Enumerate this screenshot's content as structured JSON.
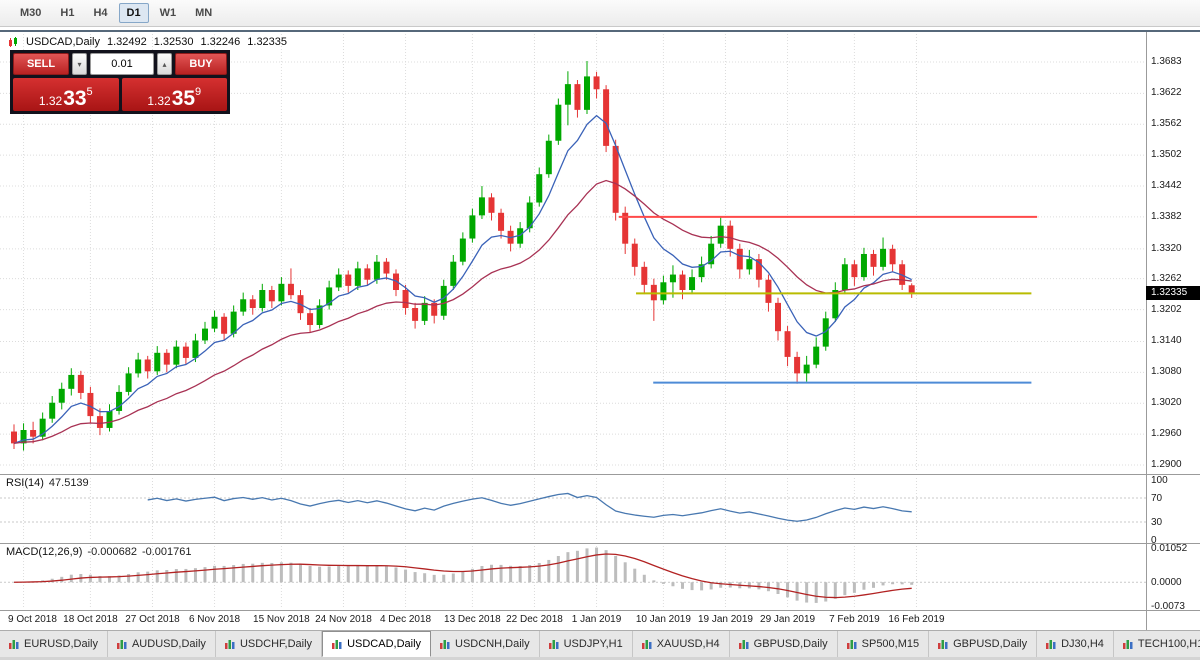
{
  "toolbar": {
    "timeframes": [
      "M30",
      "H1",
      "H4",
      "D1",
      "W1",
      "MN"
    ],
    "active": "D1"
  },
  "chart_header": {
    "title": "USDCAD,Daily",
    "open": "1.32492",
    "high": "1.32530",
    "low": "1.32246",
    "close": "1.32335"
  },
  "trade_widget": {
    "sell_label": "SELL",
    "buy_label": "BUY",
    "volume": "0.01",
    "sell_price_big": "1.32",
    "sell_price_pips": "33",
    "sell_price_pipette": "5",
    "buy_price_big": "1.32",
    "buy_price_pips": "35",
    "buy_price_pipette": "9"
  },
  "price_axis": {
    "current_price": "1.32335"
  },
  "rsi_panel": {
    "title": "RSI(14)",
    "value": "47.5139",
    "axis_labels": [
      "100",
      "70",
      "30",
      "0"
    ]
  },
  "macd_panel": {
    "title": "MACD(12,26,9)",
    "value_main": "-0.000682",
    "value_signal": "-0.001761",
    "axis_labels": [
      "0.01052",
      "0.0000",
      "-0.0073"
    ]
  },
  "tabs": {
    "items": [
      "EURUSD,Daily",
      "AUDUSD,Daily",
      "USDCHF,Daily",
      "USDCAD,Daily",
      "USDCNH,Daily",
      "USDJPY,H1",
      "XAUUSD,H4",
      "GBPUSD,Daily",
      "SP500,M15",
      "GBPUSD,Daily",
      "DJ30,H4",
      "TECH100,H1"
    ],
    "active": "USDCAD,Daily"
  },
  "chart_data": {
    "type": "candlestick",
    "title": "USDCAD,Daily",
    "symbol": "USDCAD",
    "timeframe": "Daily",
    "ohlc_current": [
      1.32492,
      1.3253,
      1.32246,
      1.32335
    ],
    "y_gridlines": [
      1.3683,
      1.3622,
      1.3562,
      1.3502,
      1.3442,
      1.3382,
      1.332,
      1.3262,
      1.3202,
      1.314,
      1.308,
      1.302,
      1.296,
      1.29
    ],
    "x_ticks": [
      {
        "label": "9 Oct 2018",
        "index": 1
      },
      {
        "label": "18 Oct 2018",
        "index": 8
      },
      {
        "label": "27 Oct 2018",
        "index": 14.5
      },
      {
        "label": "6 Nov 2018",
        "index": 21
      },
      {
        "label": "15 Nov 2018",
        "index": 28
      },
      {
        "label": "24 Nov 2018",
        "index": 34.5
      },
      {
        "label": "4 Dec 2018",
        "index": 41
      },
      {
        "label": "13 Dec 2018",
        "index": 48
      },
      {
        "label": "22 Dec 2018",
        "index": 54.5
      },
      {
        "label": "1 Jan 2019",
        "index": 61
      },
      {
        "label": "10 Jan 2019",
        "index": 68
      },
      {
        "label": "19 Jan 2019",
        "index": 74.5
      },
      {
        "label": "29 Jan 2019",
        "index": 81
      },
      {
        "label": "7 Feb 2019",
        "index": 88
      },
      {
        "label": "16 Feb 2019",
        "index": 94.5
      }
    ],
    "candles": [
      [
        1.2965,
        1.2979,
        1.2931,
        1.2942
      ],
      [
        1.2942,
        1.2981,
        1.2928,
        1.2968
      ],
      [
        1.2968,
        1.2984,
        1.2942,
        1.2955
      ],
      [
        1.2955,
        1.3002,
        1.2948,
        1.299
      ],
      [
        1.299,
        1.3034,
        1.2982,
        1.3021
      ],
      [
        1.3021,
        1.306,
        1.3008,
        1.3048
      ],
      [
        1.3048,
        1.3088,
        1.3035,
        1.3075
      ],
      [
        1.3075,
        1.3083,
        1.3028,
        1.304
      ],
      [
        1.304,
        1.3052,
        1.2982,
        1.2995
      ],
      [
        1.2995,
        1.301,
        1.2958,
        1.2972
      ],
      [
        1.2972,
        1.3018,
        1.2965,
        1.3005
      ],
      [
        1.3005,
        1.3055,
        1.2998,
        1.3042
      ],
      [
        1.3042,
        1.309,
        1.3035,
        1.3078
      ],
      [
        1.3078,
        1.3118,
        1.307,
        1.3105
      ],
      [
        1.3105,
        1.3112,
        1.3068,
        1.3082
      ],
      [
        1.3082,
        1.3131,
        1.3075,
        1.3118
      ],
      [
        1.3118,
        1.3125,
        1.308,
        1.3095
      ],
      [
        1.3095,
        1.3142,
        1.3088,
        1.313
      ],
      [
        1.313,
        1.3138,
        1.3096,
        1.3108
      ],
      [
        1.3108,
        1.3155,
        1.31,
        1.3142
      ],
      [
        1.3142,
        1.3178,
        1.3135,
        1.3165
      ],
      [
        1.3165,
        1.32,
        1.3158,
        1.3188
      ],
      [
        1.3188,
        1.3195,
        1.3142,
        1.3155
      ],
      [
        1.3155,
        1.321,
        1.3148,
        1.3198
      ],
      [
        1.3198,
        1.3235,
        1.319,
        1.3222
      ],
      [
        1.3222,
        1.323,
        1.3192,
        1.3205
      ],
      [
        1.3205,
        1.3252,
        1.3198,
        1.324
      ],
      [
        1.324,
        1.3248,
        1.3205,
        1.3218
      ],
      [
        1.3218,
        1.3265,
        1.321,
        1.3252
      ],
      [
        1.3252,
        1.3282,
        1.3222,
        1.323
      ],
      [
        1.323,
        1.324,
        1.3182,
        1.3195
      ],
      [
        1.3195,
        1.3205,
        1.3158,
        1.3172
      ],
      [
        1.3172,
        1.3222,
        1.3165,
        1.321
      ],
      [
        1.321,
        1.3258,
        1.3202,
        1.3245
      ],
      [
        1.3245,
        1.3282,
        1.3238,
        1.327
      ],
      [
        1.327,
        1.3278,
        1.3235,
        1.3248
      ],
      [
        1.3248,
        1.3295,
        1.324,
        1.3282
      ],
      [
        1.3282,
        1.329,
        1.3248,
        1.326
      ],
      [
        1.326,
        1.3308,
        1.3252,
        1.3295
      ],
      [
        1.3295,
        1.3302,
        1.326,
        1.3272
      ],
      [
        1.3272,
        1.328,
        1.3228,
        1.324
      ],
      [
        1.324,
        1.325,
        1.3192,
        1.3205
      ],
      [
        1.3205,
        1.3215,
        1.3165,
        1.318
      ],
      [
        1.318,
        1.3228,
        1.3172,
        1.3215
      ],
      [
        1.3215,
        1.3222,
        1.3175,
        1.319
      ],
      [
        1.319,
        1.326,
        1.3182,
        1.3248
      ],
      [
        1.3248,
        1.3308,
        1.324,
        1.3295
      ],
      [
        1.3295,
        1.3352,
        1.3288,
        1.334
      ],
      [
        1.334,
        1.3398,
        1.3332,
        1.3385
      ],
      [
        1.3385,
        1.3442,
        1.3378,
        1.342
      ],
      [
        1.342,
        1.3428,
        1.3375,
        1.339
      ],
      [
        1.339,
        1.3398,
        1.334,
        1.3355
      ],
      [
        1.3355,
        1.3365,
        1.3315,
        1.333
      ],
      [
        1.333,
        1.3372,
        1.3322,
        1.336
      ],
      [
        1.336,
        1.3422,
        1.3352,
        1.341
      ],
      [
        1.341,
        1.3478,
        1.3402,
        1.3465
      ],
      [
        1.3465,
        1.3542,
        1.3458,
        1.353
      ],
      [
        1.353,
        1.3612,
        1.3522,
        1.36
      ],
      [
        1.36,
        1.3665,
        1.356,
        1.364
      ],
      [
        1.364,
        1.3648,
        1.3575,
        1.359
      ],
      [
        1.359,
        1.3685,
        1.3582,
        1.3655
      ],
      [
        1.3655,
        1.3664,
        1.3612,
        1.363
      ],
      [
        1.363,
        1.3638,
        1.3508,
        1.352
      ],
      [
        1.352,
        1.3532,
        1.3375,
        1.339
      ],
      [
        1.339,
        1.3402,
        1.331,
        1.333
      ],
      [
        1.333,
        1.334,
        1.3268,
        1.3285
      ],
      [
        1.3285,
        1.3295,
        1.3232,
        1.325
      ],
      [
        1.325,
        1.3262,
        1.318,
        1.322
      ],
      [
        1.322,
        1.3268,
        1.3212,
        1.3255
      ],
      [
        1.3255,
        1.3288,
        1.3225,
        1.327
      ],
      [
        1.327,
        1.3278,
        1.3222,
        1.324
      ],
      [
        1.324,
        1.328,
        1.3232,
        1.3265
      ],
      [
        1.3265,
        1.3305,
        1.3255,
        1.329
      ],
      [
        1.329,
        1.3345,
        1.3282,
        1.333
      ],
      [
        1.333,
        1.3382,
        1.3322,
        1.3365
      ],
      [
        1.3365,
        1.3375,
        1.3305,
        1.332
      ],
      [
        1.332,
        1.333,
        1.3262,
        1.328
      ],
      [
        1.328,
        1.3318,
        1.327,
        1.33
      ],
      [
        1.33,
        1.331,
        1.3245,
        1.326
      ],
      [
        1.326,
        1.327,
        1.3198,
        1.3215
      ],
      [
        1.3215,
        1.3225,
        1.3142,
        1.316
      ],
      [
        1.316,
        1.317,
        1.3092,
        1.311
      ],
      [
        1.311,
        1.312,
        1.3058,
        1.3078
      ],
      [
        1.3078,
        1.3112,
        1.3062,
        1.3095
      ],
      [
        1.3095,
        1.3148,
        1.3088,
        1.313
      ],
      [
        1.313,
        1.3198,
        1.3122,
        1.3185
      ],
      [
        1.3185,
        1.3255,
        1.3178,
        1.324
      ],
      [
        1.324,
        1.3302,
        1.3232,
        1.329
      ],
      [
        1.329,
        1.3298,
        1.3248,
        1.3265
      ],
      [
        1.3265,
        1.3322,
        1.3258,
        1.331
      ],
      [
        1.331,
        1.3318,
        1.3268,
        1.3285
      ],
      [
        1.3285,
        1.3342,
        1.3278,
        1.332
      ],
      [
        1.332,
        1.3328,
        1.3275,
        1.329
      ],
      [
        1.329,
        1.3298,
        1.324,
        1.325
      ],
      [
        1.32492,
        1.3253,
        1.32246,
        1.32335
      ]
    ],
    "moving_averages": [
      {
        "period": 7,
        "method": "ema",
        "color": "#3A62B8"
      },
      {
        "period": 21,
        "method": "ema",
        "color": "#A83254"
      }
    ],
    "horizontal_lines": [
      {
        "price": 1.3382,
        "color": "#FF4A4A",
        "width": 2,
        "x_start": 0.54,
        "x_end": 0.905
      },
      {
        "price": 1.32335,
        "color": "#B9BC00",
        "width": 2,
        "x_start": 0.555,
        "x_end": 0.9
      },
      {
        "price": 1.306,
        "color": "#4D8BD6",
        "width": 2,
        "x_start": 0.57,
        "x_end": 0.9
      }
    ],
    "indicators": {
      "rsi": {
        "period": 14,
        "color": "#4878B0",
        "levels": [
          70,
          30
        ],
        "range": [
          0,
          100
        ],
        "current": 47.5139
      },
      "macd": {
        "fast": 12,
        "slow": 26,
        "signal": 9,
        "histogram_color": "#BDBDBD",
        "signal_color": "#B22222",
        "range": [
          -0.0073,
          0.01052
        ],
        "current_main": -0.000682,
        "current_signal": -0.001761
      }
    },
    "colors": {
      "up": "#00A800",
      "down": "#E53535",
      "grid": "#DCDCDC"
    }
  }
}
